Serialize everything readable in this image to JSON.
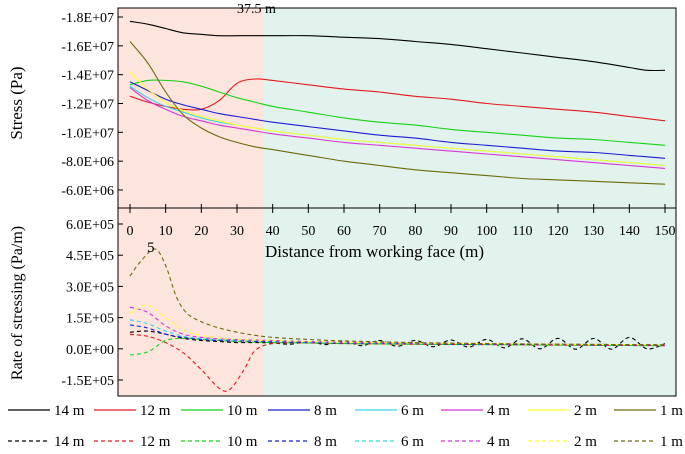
{
  "chart_data": [
    {
      "type": "line",
      "ylabel": "Stress (Pa)",
      "ylim": [
        -18000000,
        -6000000
      ],
      "y_ticks": [
        "-1.8E+07",
        "-1.6E+07",
        "-1.4E+07",
        "-1.2E+07",
        "-1.0E+07",
        "-8.0E+06",
        "-6.0E+06"
      ],
      "y_tick_values": [
        -18000000,
        -16000000,
        -14000000,
        -12000000,
        -10000000,
        -8000000,
        -6000000
      ],
      "y_inverted": true,
      "annotation": "37.5 m",
      "series": [
        {
          "name": "14 m",
          "color": "#000000",
          "x": [
            0,
            5,
            10,
            15,
            20,
            25,
            30,
            35,
            40,
            50,
            60,
            70,
            80,
            90,
            100,
            110,
            120,
            130,
            140,
            145,
            150
          ],
          "y": [
            -17700000,
            -17500000,
            -17200000,
            -16900000,
            -16800000,
            -16700000,
            -16700000,
            -16700000,
            -16700000,
            -16700000,
            -16600000,
            -16500000,
            -16300000,
            -16100000,
            -15800000,
            -15500000,
            -15200000,
            -14900000,
            -14500000,
            -14300000,
            -14300000
          ]
        },
        {
          "name": "12 m",
          "color": "#e31a1c",
          "x": [
            0,
            5,
            10,
            15,
            20,
            25,
            30,
            35,
            40,
            50,
            60,
            70,
            80,
            90,
            100,
            110,
            120,
            130,
            140,
            150
          ],
          "y": [
            -12500000,
            -12100000,
            -11800000,
            -11600000,
            -11600000,
            -12200000,
            -13400000,
            -13700000,
            -13600000,
            -13300000,
            -13000000,
            -12800000,
            -12500000,
            -12300000,
            -12000000,
            -11800000,
            -11600000,
            -11400000,
            -11100000,
            -10800000
          ]
        },
        {
          "name": "10 m",
          "color": "#17d317",
          "x": [
            0,
            5,
            10,
            15,
            20,
            25,
            30,
            35,
            40,
            50,
            60,
            70,
            80,
            90,
            100,
            110,
            120,
            130,
            140,
            150
          ],
          "y": [
            -13300000,
            -13600000,
            -13600000,
            -13500000,
            -13200000,
            -12800000,
            -12400000,
            -12100000,
            -11800000,
            -11400000,
            -11000000,
            -10700000,
            -10500000,
            -10200000,
            -10000000,
            -9800000,
            -9600000,
            -9500000,
            -9300000,
            -9100000
          ]
        },
        {
          "name": "8 m",
          "color": "#1c1cd6",
          "x": [
            0,
            5,
            10,
            15,
            20,
            25,
            30,
            35,
            40,
            50,
            60,
            70,
            80,
            90,
            100,
            110,
            120,
            130,
            140,
            150
          ],
          "y": [
            -13500000,
            -12900000,
            -12300000,
            -11900000,
            -11600000,
            -11300000,
            -11100000,
            -10900000,
            -10700000,
            -10400000,
            -10100000,
            -9800000,
            -9600000,
            -9300000,
            -9100000,
            -8900000,
            -8700000,
            -8600000,
            -8400000,
            -8200000
          ]
        },
        {
          "name": "6 m",
          "color": "#33d6e6",
          "x": [
            0,
            5,
            10,
            15,
            20,
            25,
            30,
            35,
            40,
            50,
            60,
            70,
            80,
            90,
            100,
            110,
            120,
            130,
            140,
            150
          ],
          "y": [
            -13200000,
            -12400000,
            -11800000,
            -11400000,
            -11000000,
            -10700000,
            -10500000,
            -10300000,
            -10100000,
            -9800000,
            -9500000,
            -9300000,
            -9100000,
            -8900000,
            -8700000,
            -8500000,
            -8300000,
            -8100000,
            -7900000,
            -7700000
          ]
        },
        {
          "name": "4 m",
          "color": "#d633d6",
          "x": [
            0,
            5,
            10,
            15,
            20,
            25,
            30,
            35,
            40,
            50,
            60,
            70,
            80,
            90,
            100,
            110,
            120,
            130,
            140,
            150
          ],
          "y": [
            -13100000,
            -12200000,
            -11600000,
            -11100000,
            -10800000,
            -10500000,
            -10300000,
            -10100000,
            -9900000,
            -9600000,
            -9300000,
            -9100000,
            -8900000,
            -8700000,
            -8500000,
            -8300000,
            -8100000,
            -7900000,
            -7700000,
            -7500000
          ]
        },
        {
          "name": "2 m",
          "color": "#ffff33",
          "x": [
            0,
            5,
            10,
            15,
            20,
            25,
            30,
            35,
            40,
            50,
            60,
            70,
            80,
            90,
            100,
            110,
            120,
            130,
            140,
            150
          ],
          "y": [
            -14200000,
            -13000000,
            -12100000,
            -11500000,
            -11100000,
            -10800000,
            -10500000,
            -10300000,
            -10100000,
            -9800000,
            -9500000,
            -9300000,
            -9100000,
            -8900000,
            -8700000,
            -8500000,
            -8300000,
            -8100000,
            -7900000,
            -7700000
          ]
        },
        {
          "name": "1 m",
          "color": "#6b6b0c",
          "x": [
            0,
            5,
            10,
            15,
            20,
            25,
            30,
            35,
            40,
            50,
            60,
            70,
            80,
            90,
            100,
            110,
            120,
            130,
            140,
            150
          ],
          "y": [
            -16300000,
            -14800000,
            -12800000,
            -11200000,
            -10300000,
            -9700000,
            -9300000,
            -9000000,
            -8800000,
            -8400000,
            -8000000,
            -7700000,
            -7400000,
            -7200000,
            -7000000,
            -6800000,
            -6700000,
            -6600000,
            -6500000,
            -6400000
          ]
        }
      ]
    },
    {
      "type": "line",
      "xlabel": "Distance from working face (m)",
      "ylabel": "Rate of stressing (Pa/m)",
      "ylim": [
        -150000,
        600000
      ],
      "y_ticks": [
        "-1.5E+05",
        "0.0E+00",
        "1.5E+05",
        "3.0E+05",
        "4.5E+05",
        "6.0E+05"
      ],
      "y_tick_values": [
        -150000,
        0,
        150000,
        300000,
        450000,
        600000
      ],
      "xlim": [
        0,
        150
      ],
      "x_ticks": [
        "0",
        "10",
        "20",
        "30",
        "40",
        "50",
        "60",
        "70",
        "80",
        "90",
        "100",
        "110",
        "120",
        "130",
        "140",
        "150"
      ],
      "x_tick_values": [
        0,
        10,
        20,
        30,
        40,
        50,
        60,
        70,
        80,
        90,
        100,
        110,
        120,
        130,
        140,
        150
      ],
      "annotation": "5",
      "series": [
        {
          "name": "14 m",
          "color": "#000000",
          "x": [
            0,
            5,
            10,
            15,
            20,
            25,
            30,
            35,
            40,
            45,
            50,
            55,
            60,
            65,
            70,
            75,
            80,
            85,
            90,
            95,
            100,
            105,
            110,
            115,
            120,
            125,
            130,
            135,
            140,
            145,
            150
          ],
          "y": [
            80000,
            85000,
            70000,
            50000,
            40000,
            35000,
            30000,
            30000,
            28000,
            22000,
            35000,
            20000,
            38000,
            15000,
            40000,
            12000,
            40000,
            10000,
            42000,
            8000,
            45000,
            5000,
            48000,
            0,
            50000,
            -2000,
            50000,
            -2000,
            55000,
            0,
            25000
          ]
        },
        {
          "name": "12 m",
          "color": "#e31a1c",
          "x": [
            0,
            5,
            10,
            15,
            20,
            25,
            28,
            32,
            35,
            40,
            50,
            60,
            80,
            100,
            120,
            140,
            150
          ],
          "y": [
            70000,
            60000,
            30000,
            -20000,
            -100000,
            -190000,
            -195000,
            -100000,
            -10000,
            25000,
            28000,
            25000,
            22000,
            20000,
            18000,
            16000,
            15000
          ]
        },
        {
          "name": "10 m",
          "color": "#17d317",
          "x": [
            0,
            5,
            10,
            15,
            20,
            25,
            30,
            35,
            40,
            50,
            60,
            80,
            100,
            120,
            140,
            150
          ],
          "y": [
            -30000,
            -15000,
            40000,
            50000,
            45000,
            40000,
            35000,
            32000,
            30000,
            28000,
            25000,
            22000,
            20000,
            18000,
            16000,
            15000
          ]
        },
        {
          "name": "8 m",
          "color": "#1c1cd6",
          "x": [
            0,
            5,
            10,
            15,
            20,
            25,
            30,
            35,
            40,
            50,
            60,
            80,
            100,
            120,
            140,
            150
          ],
          "y": [
            115000,
            100000,
            70000,
            55000,
            45000,
            40000,
            38000,
            36000,
            34000,
            30000,
            28000,
            25000,
            22000,
            20000,
            18000,
            17000
          ]
        },
        {
          "name": "6 m",
          "color": "#33d6e6",
          "x": [
            0,
            5,
            10,
            15,
            20,
            25,
            30,
            35,
            40,
            50,
            60,
            80,
            100,
            120,
            140,
            150
          ],
          "y": [
            140000,
            120000,
            85000,
            60000,
            50000,
            45000,
            42000,
            40000,
            38000,
            33000,
            30000,
            27000,
            25000,
            22000,
            20000,
            19000
          ]
        },
        {
          "name": "4 m",
          "color": "#d633d6",
          "x": [
            0,
            5,
            10,
            15,
            20,
            25,
            30,
            35,
            40,
            50,
            60,
            80,
            100,
            120,
            140,
            150
          ],
          "y": [
            200000,
            175000,
            110000,
            70000,
            55000,
            48000,
            44000,
            42000,
            40000,
            35000,
            32000,
            28000,
            25000,
            22000,
            20000,
            19000
          ]
        },
        {
          "name": "2 m",
          "color": "#ffff33",
          "x": [
            0,
            5,
            10,
            15,
            20,
            25,
            30,
            35,
            40,
            50,
            60,
            80,
            100,
            120,
            140,
            150
          ],
          "y": [
            170000,
            210000,
            150000,
            90000,
            65000,
            52000,
            46000,
            42000,
            40000,
            35000,
            32000,
            28000,
            25000,
            22000,
            20000,
            19000
          ]
        },
        {
          "name": "1 m",
          "color": "#6b6b0c",
          "x": [
            0,
            3,
            7,
            10,
            13,
            16,
            20,
            25,
            30,
            35,
            40,
            50,
            60,
            80,
            100,
            120,
            140,
            150
          ],
          "y": [
            350000,
            420000,
            480000,
            400000,
            250000,
            170000,
            130000,
            100000,
            80000,
            65000,
            55000,
            45000,
            38000,
            30000,
            25000,
            22000,
            20000,
            19000
          ]
        }
      ]
    }
  ],
  "legend": {
    "solid_row": [
      "14 m",
      "12 m",
      "10 m",
      "8 m",
      "6 m",
      "4 m",
      "2 m",
      "1 m"
    ],
    "dashed_row": [
      "14 m",
      "12 m",
      "10 m",
      "8 m",
      "6 m",
      "4 m",
      "2 m",
      "1 m"
    ],
    "colors": [
      "#000000",
      "#e31a1c",
      "#17d317",
      "#1c1cd6",
      "#33d6e6",
      "#d633d6",
      "#ffff33",
      "#6b6b0c"
    ]
  },
  "regions": {
    "left_color": "#fde4dc",
    "right_color": "#e2f2ec",
    "boundary_x": 37.5
  }
}
